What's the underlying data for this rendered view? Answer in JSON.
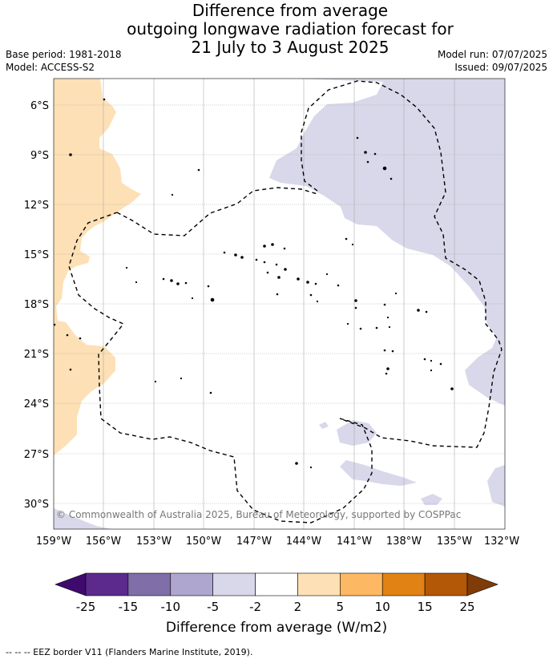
{
  "title": {
    "line1": "Difference from average",
    "line2": "outgoing longwave radiation forecast for",
    "line3": "21 July to 3 August 2025"
  },
  "meta": {
    "base_period": "Base period: 1981-2018",
    "model": "Model: ACCESS-S2",
    "model_run": "Model run: 07/07/2025",
    "issued": "Issued: 09/07/2025"
  },
  "map": {
    "lat_labels": [
      "6°S",
      "9°S",
      "12°S",
      "15°S",
      "18°S",
      "21°S",
      "24°S",
      "27°S",
      "30°S"
    ],
    "lon_labels": [
      "159°W",
      "156°W",
      "153°W",
      "150°W",
      "147°W",
      "144°W",
      "141°W",
      "138°W",
      "135°W",
      "132°W"
    ],
    "copyright": "© Commonwealth of Australia 2025, Bureau of Meteorology, supported by COSPPac",
    "colors": {
      "light_orange": "#fde0b5",
      "light_purple": "#d8d8ea",
      "grid": "#999999"
    }
  },
  "colorbar": {
    "ticks": [
      "-25",
      "-15",
      "-10",
      "-5",
      "-2",
      "2",
      "5",
      "10",
      "15",
      "25"
    ],
    "colors": [
      "#3f0a6e",
      "#5b2a8c",
      "#7f6ea8",
      "#aea6cf",
      "#d8d8ea",
      "#ffffff",
      "#fde0b5",
      "#fdb863",
      "#e08214",
      "#b35806",
      "#7f3b08"
    ],
    "label": "Difference from average (W/m2)"
  },
  "footer": {
    "legend": "--  --  -- EEZ border V11 (Flanders Marine Institute, 2019)."
  }
}
